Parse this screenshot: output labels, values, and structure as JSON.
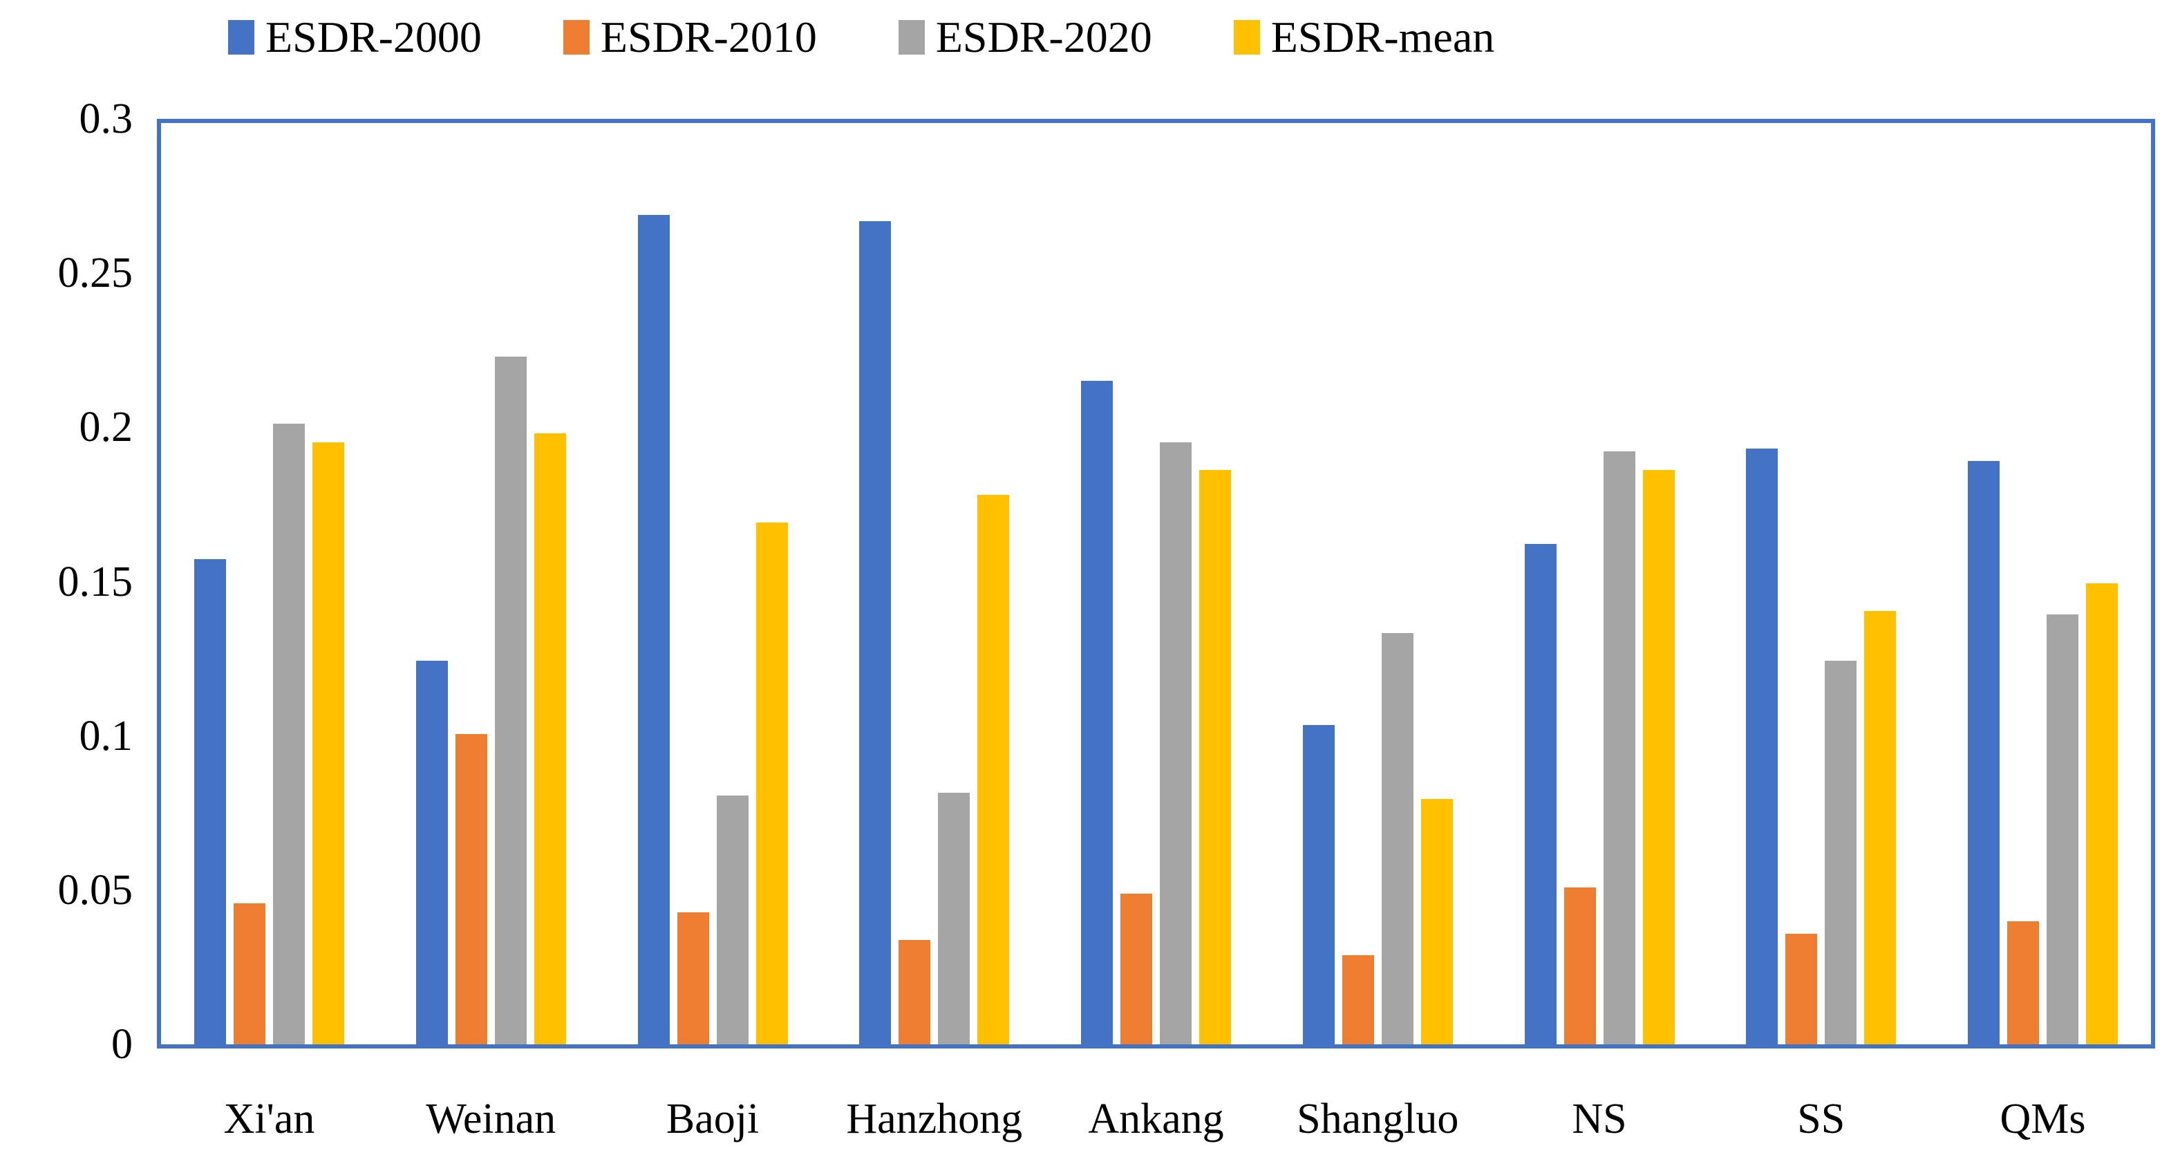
{
  "chart_data": {
    "type": "bar",
    "title": "",
    "xlabel": "",
    "ylabel": "",
    "categories": [
      "Xi'an",
      "Weinan",
      "Baoji",
      "Hanzhong",
      "Ankang",
      "Shangluo",
      "NS",
      "SS",
      "QMs"
    ],
    "series": [
      {
        "name": "ESDR-2000",
        "color": "#4472C4",
        "values": [
          0.158,
          0.125,
          0.27,
          0.268,
          0.216,
          0.104,
          0.163,
          0.194,
          0.19
        ]
      },
      {
        "name": "ESDR-2010",
        "color": "#ED7D31",
        "values": [
          0.046,
          0.101,
          0.043,
          0.034,
          0.049,
          0.029,
          0.051,
          0.036,
          0.04
        ]
      },
      {
        "name": "ESDR-2020",
        "color": "#A5A5A5",
        "values": [
          0.202,
          0.224,
          0.081,
          0.082,
          0.196,
          0.134,
          0.193,
          0.125,
          0.14
        ]
      },
      {
        "name": "ESDR-mean",
        "color": "#FFC000",
        "values": [
          0.196,
          0.199,
          0.17,
          0.179,
          0.187,
          0.08,
          0.187,
          0.141,
          0.15
        ]
      }
    ],
    "y_axis": {
      "min": 0,
      "max": 0.3,
      "ticks": [
        0,
        0.05,
        0.1,
        0.15,
        0.2,
        0.25,
        0.3
      ],
      "tick_labels": [
        "0",
        "0.05",
        "0.1",
        "0.15",
        "0.2",
        "0.25",
        "0.3"
      ]
    },
    "legend_position": "top",
    "grid": false,
    "plot_border_color": "#4472C4"
  }
}
